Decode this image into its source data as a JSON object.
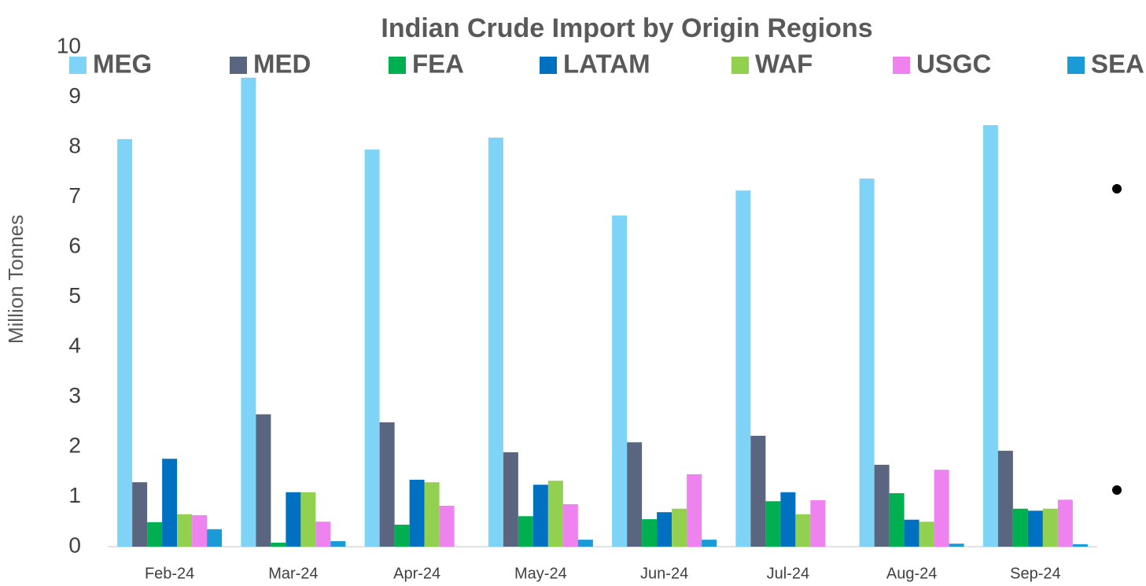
{
  "chart_data": {
    "type": "bar",
    "title": "Indian Crude Import by Origin Regions",
    "y_label": "Million Tonnes",
    "categories": [
      "Feb-24",
      "Mar-24",
      "Apr-24",
      "May-24",
      "Jun-24",
      "Jul-24",
      "Aug-24",
      "Sep-24"
    ],
    "series": [
      {
        "name": "MEG",
        "color": "#7fd3f7",
        "values": [
          8.16,
          9.39,
          7.95,
          8.19,
          6.63,
          7.13,
          7.37,
          8.44
        ]
      },
      {
        "name": "MED",
        "color": "#5a6680",
        "values": [
          1.29,
          2.65,
          2.49,
          1.89,
          2.09,
          2.22,
          1.64,
          1.92
        ]
      },
      {
        "name": "FEA",
        "color": "#00b050",
        "values": [
          0.49,
          0.08,
          0.44,
          0.61,
          0.55,
          0.91,
          1.07,
          0.76
        ]
      },
      {
        "name": "LATAM",
        "color": "#0070c0",
        "values": [
          1.76,
          1.09,
          1.34,
          1.24,
          0.69,
          1.09,
          0.54,
          0.72
        ]
      },
      {
        "name": "WAF",
        "color": "#92d050",
        "values": [
          0.65,
          1.09,
          1.29,
          1.32,
          0.76,
          0.65,
          0.5,
          0.76
        ]
      },
      {
        "name": "USGC",
        "color": "#ee82ee",
        "values": [
          0.63,
          0.5,
          0.82,
          0.85,
          1.45,
          0.93,
          1.54,
          0.94
        ]
      },
      {
        "name": "SEA",
        "color": "#1a9bd7",
        "values": [
          0.35,
          0.11,
          0,
          0.14,
          0.14,
          0,
          0.06,
          0.05
        ]
      }
    ],
    "ylim": [
      0,
      10
    ],
    "yticks": [
      0,
      1,
      2,
      3,
      4,
      5,
      6,
      7,
      8,
      9,
      10
    ],
    "grid": false,
    "legend": "top"
  }
}
